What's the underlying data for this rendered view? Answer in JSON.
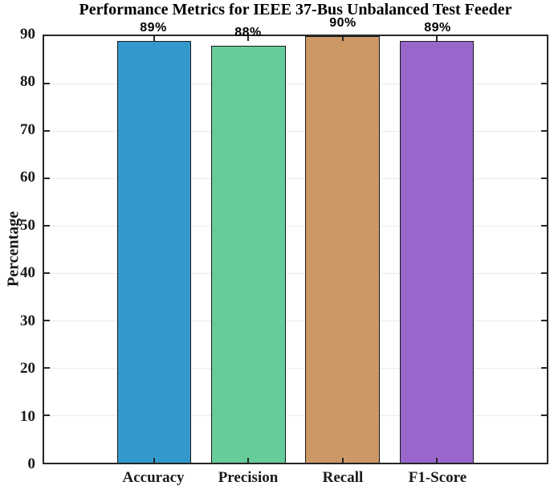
{
  "chart_data": {
    "type": "bar",
    "title": "Performance Metrics for IEEE 37-Bus Unbalanced Test Feeder",
    "xlabel": "",
    "ylabel": "Percentage",
    "categories": [
      "Accuracy",
      "Precision",
      "Recall",
      "F1-Score"
    ],
    "values": [
      89,
      88,
      90,
      89
    ],
    "bar_labels": [
      "89%",
      "88%",
      "90%",
      "89%"
    ],
    "bar_colors": [
      "#3399cc",
      "#66cc99",
      "#cc9966",
      "#9966cc"
    ],
    "bar_edge_color": "#1a1a1a",
    "ylim": [
      0,
      90
    ],
    "yticks": [
      0,
      10,
      20,
      30,
      40,
      50,
      60,
      70,
      80,
      90
    ],
    "xlim": [
      -0.17,
      5.17
    ],
    "bar_width": 0.79,
    "grid": "horizontal",
    "grid_color": "#eaeaea",
    "axis_color": "#262626",
    "legend": "none"
  }
}
